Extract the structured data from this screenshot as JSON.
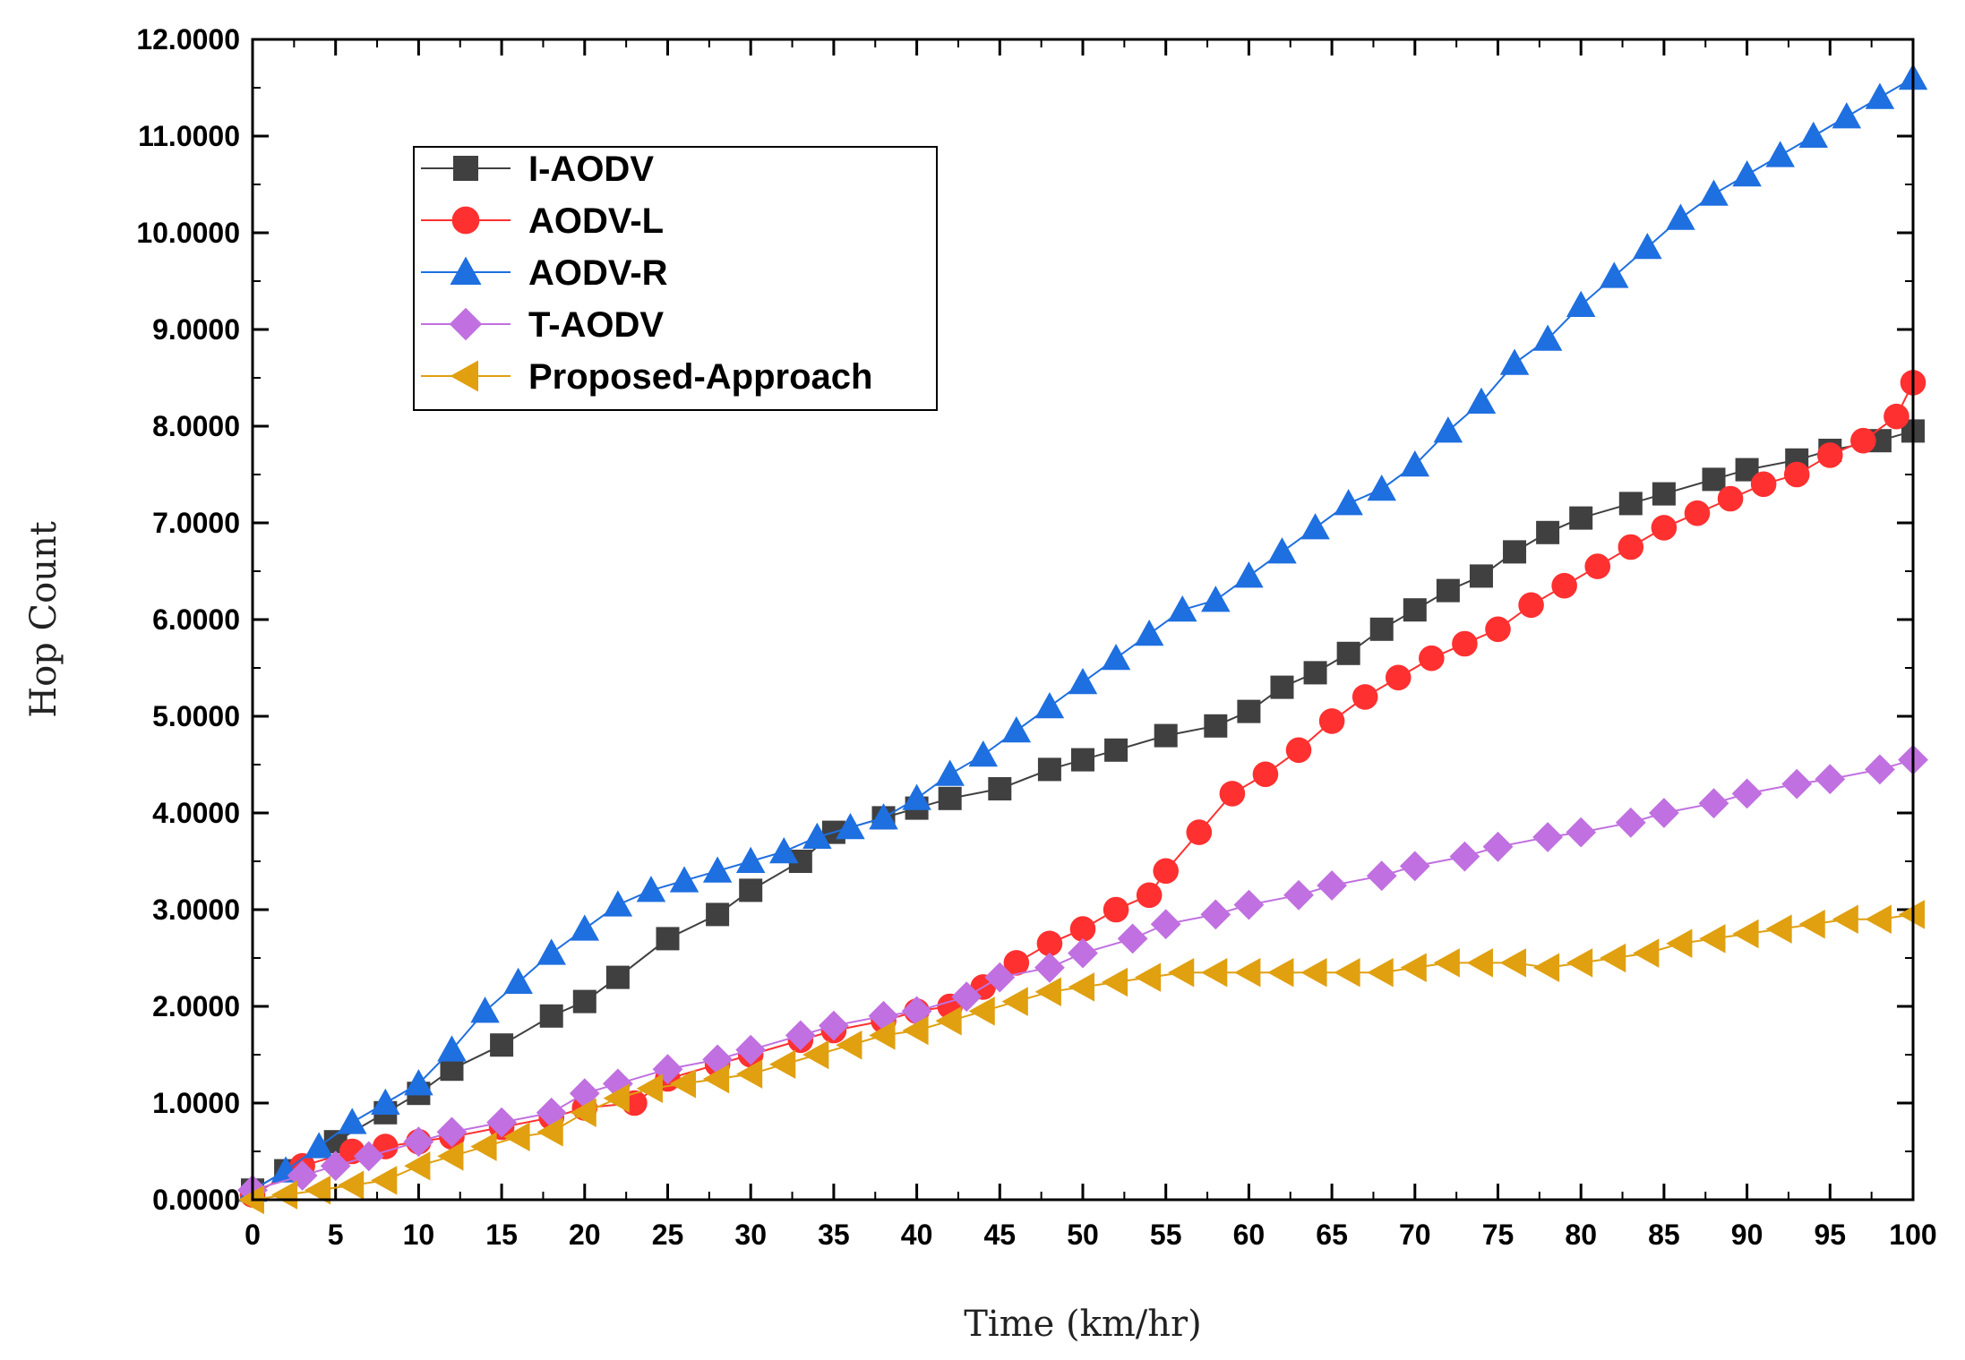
{
  "chart_data": {
    "type": "line",
    "title": "",
    "xlabel": "Time (km/hr)",
    "ylabel": "Hop Count",
    "xlim": [
      0,
      100
    ],
    "ylim": [
      0,
      12
    ],
    "xticks": [
      "0",
      "5",
      "10",
      "15",
      "20",
      "25",
      "30",
      "35",
      "40",
      "45",
      "50",
      "55",
      "60",
      "65",
      "70",
      "75",
      "80",
      "85",
      "90",
      "95",
      "100"
    ],
    "yticks": [
      "0.0000",
      "1.0000",
      "2.0000",
      "3.0000",
      "4.0000",
      "5.0000",
      "6.0000",
      "7.0000",
      "8.0000",
      "9.0000",
      "10.0000",
      "11.0000",
      "12.0000"
    ],
    "legend_position": "top-left",
    "series": [
      {
        "name": "I-AODV",
        "color": "#404040",
        "marker": "square",
        "x": [
          0,
          2,
          5,
          8,
          10,
          12,
          15,
          18,
          20,
          22,
          25,
          28,
          30,
          33,
          35,
          38,
          40,
          42,
          45,
          48,
          50,
          52,
          55,
          58,
          60,
          62,
          64,
          66,
          68,
          70,
          72,
          74,
          76,
          78,
          80,
          83,
          85,
          88,
          90,
          93,
          95,
          98,
          100
        ],
        "y": [
          0.1,
          0.3,
          0.6,
          0.9,
          1.1,
          1.35,
          1.6,
          1.9,
          2.05,
          2.3,
          2.7,
          2.95,
          3.2,
          3.5,
          3.8,
          3.95,
          4.05,
          4.15,
          4.25,
          4.45,
          4.55,
          4.65,
          4.8,
          4.9,
          5.05,
          5.3,
          5.45,
          5.65,
          5.9,
          6.1,
          6.3,
          6.45,
          6.7,
          6.9,
          7.05,
          7.2,
          7.3,
          7.45,
          7.55,
          7.65,
          7.75,
          7.85,
          7.95
        ]
      },
      {
        "name": "AODV-L",
        "color": "#ff3030",
        "marker": "circle",
        "x": [
          0,
          3,
          6,
          8,
          10,
          12,
          15,
          18,
          20,
          23,
          25,
          28,
          30,
          33,
          35,
          38,
          40,
          42,
          44,
          46,
          48,
          50,
          52,
          54,
          55,
          57,
          59,
          61,
          63,
          65,
          67,
          69,
          71,
          73,
          75,
          77,
          79,
          81,
          83,
          85,
          87,
          89,
          91,
          93,
          95,
          97,
          99,
          100
        ],
        "y": [
          0.05,
          0.35,
          0.5,
          0.55,
          0.6,
          0.65,
          0.75,
          0.85,
          0.95,
          1.0,
          1.25,
          1.4,
          1.5,
          1.65,
          1.75,
          1.85,
          1.95,
          2.0,
          2.2,
          2.45,
          2.65,
          2.8,
          3.0,
          3.15,
          3.4,
          3.8,
          4.2,
          4.4,
          4.65,
          4.95,
          5.2,
          5.4,
          5.6,
          5.75,
          5.9,
          6.15,
          6.35,
          6.55,
          6.75,
          6.95,
          7.1,
          7.25,
          7.4,
          7.5,
          7.7,
          7.85,
          8.1,
          8.45
        ]
      },
      {
        "name": "AODV-R",
        "color": "#1e6fe0",
        "marker": "triangle-up",
        "x": [
          0,
          2,
          4,
          6,
          8,
          10,
          12,
          14,
          16,
          18,
          20,
          22,
          24,
          26,
          28,
          30,
          32,
          34,
          36,
          38,
          40,
          42,
          44,
          46,
          48,
          50,
          52,
          54,
          56,
          58,
          60,
          62,
          64,
          66,
          68,
          70,
          72,
          74,
          76,
          78,
          80,
          82,
          84,
          86,
          88,
          90,
          92,
          94,
          96,
          98,
          100
        ],
        "y": [
          0.1,
          0.3,
          0.55,
          0.8,
          1.0,
          1.2,
          1.55,
          1.95,
          2.25,
          2.55,
          2.8,
          3.05,
          3.2,
          3.3,
          3.4,
          3.5,
          3.6,
          3.75,
          3.85,
          3.95,
          4.15,
          4.4,
          4.6,
          4.85,
          5.1,
          5.35,
          5.6,
          5.85,
          6.1,
          6.2,
          6.45,
          6.7,
          6.95,
          7.2,
          7.35,
          7.6,
          7.95,
          8.25,
          8.65,
          8.9,
          9.25,
          9.55,
          9.85,
          10.15,
          10.4,
          10.6,
          10.8,
          11.0,
          11.2,
          11.4,
          11.6
        ]
      },
      {
        "name": "T-AODV",
        "color": "#c070e0",
        "marker": "diamond",
        "x": [
          0,
          3,
          5,
          7,
          10,
          12,
          15,
          18,
          20,
          22,
          25,
          28,
          30,
          33,
          35,
          38,
          40,
          43,
          45,
          48,
          50,
          53,
          55,
          58,
          60,
          63,
          65,
          68,
          70,
          73,
          75,
          78,
          80,
          83,
          85,
          88,
          90,
          93,
          95,
          98,
          100
        ],
        "y": [
          0.1,
          0.25,
          0.35,
          0.45,
          0.6,
          0.7,
          0.8,
          0.9,
          1.1,
          1.2,
          1.35,
          1.45,
          1.55,
          1.7,
          1.8,
          1.9,
          1.95,
          2.1,
          2.3,
          2.4,
          2.55,
          2.7,
          2.85,
          2.95,
          3.05,
          3.15,
          3.25,
          3.35,
          3.45,
          3.55,
          3.65,
          3.75,
          3.8,
          3.9,
          4.0,
          4.1,
          4.2,
          4.3,
          4.35,
          4.45,
          4.55
        ]
      },
      {
        "name": "Proposed-Approach",
        "color": "#e0a010",
        "marker": "triangle-left",
        "x": [
          0,
          2,
          4,
          6,
          8,
          10,
          12,
          14,
          16,
          18,
          20,
          22,
          24,
          26,
          28,
          30,
          32,
          34,
          36,
          38,
          40,
          42,
          44,
          46,
          48,
          50,
          52,
          54,
          56,
          58,
          60,
          62,
          64,
          66,
          68,
          70,
          72,
          74,
          76,
          78,
          80,
          82,
          84,
          86,
          88,
          90,
          92,
          94,
          96,
          98,
          100
        ],
        "y": [
          0.0,
          0.05,
          0.1,
          0.15,
          0.2,
          0.35,
          0.45,
          0.55,
          0.65,
          0.7,
          0.9,
          1.05,
          1.15,
          1.2,
          1.25,
          1.3,
          1.4,
          1.5,
          1.6,
          1.7,
          1.75,
          1.85,
          1.95,
          2.05,
          2.15,
          2.2,
          2.25,
          2.3,
          2.35,
          2.35,
          2.35,
          2.35,
          2.35,
          2.35,
          2.35,
          2.4,
          2.45,
          2.45,
          2.45,
          2.4,
          2.45,
          2.5,
          2.55,
          2.65,
          2.7,
          2.75,
          2.8,
          2.85,
          2.9,
          2.9,
          2.95
        ]
      }
    ]
  }
}
